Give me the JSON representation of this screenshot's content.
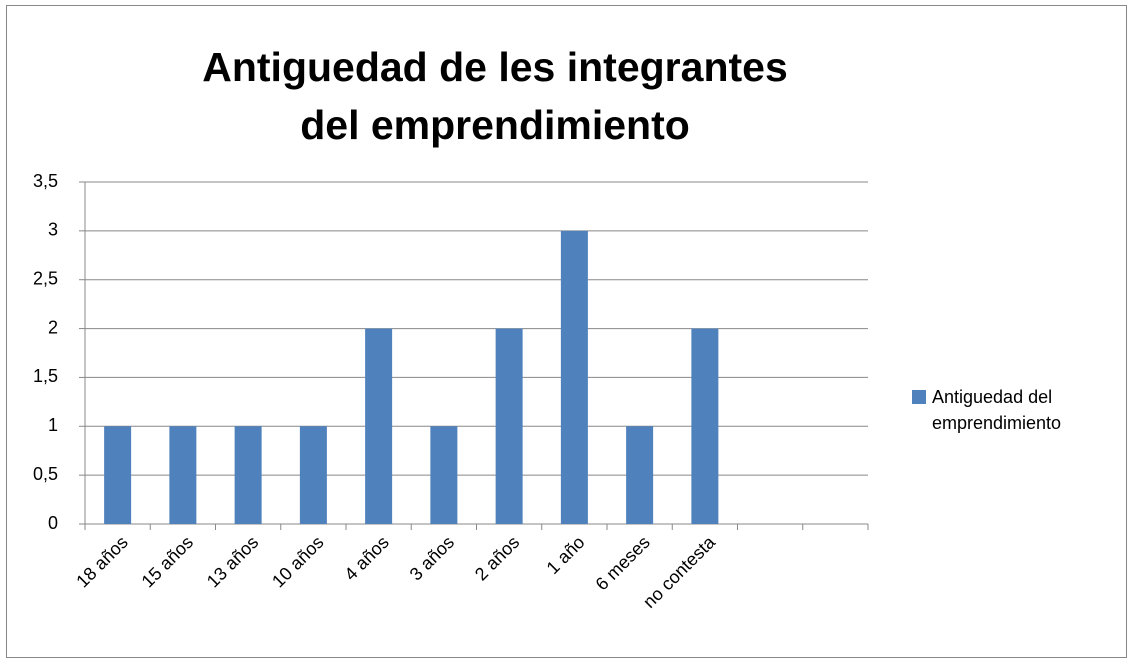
{
  "chart_data": {
    "type": "bar",
    "title": "Antiguedad de les integrantes del emprendimiento",
    "categories": [
      "18 años",
      "15 años",
      "13 años",
      "10 años",
      "4 años",
      "3 años",
      "2 años",
      "1 año",
      "6 meses",
      "no contesta",
      null,
      null
    ],
    "series": [
      {
        "name": "Antiguedad del emprendimiento",
        "color": "#4f81bd",
        "values": [
          1,
          1,
          1,
          1,
          2,
          1,
          2,
          3,
          1,
          2,
          null,
          null
        ]
      }
    ],
    "ylim": [
      0,
      3.5
    ],
    "yticks": [
      0,
      {
        "value": 0.5,
        "label": "0,5"
      },
      1,
      {
        "value": 1.5,
        "label": "1,5"
      },
      2,
      {
        "value": 2.5,
        "label": "2,5"
      },
      3,
      {
        "value": 3.5,
        "label": "3,5"
      }
    ],
    "grid": true,
    "legend": "right"
  }
}
